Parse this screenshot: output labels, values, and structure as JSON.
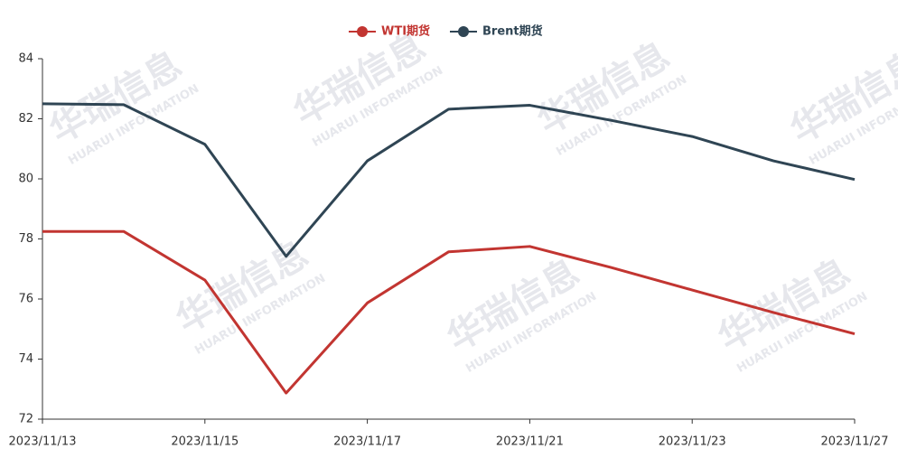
{
  "chart_data": {
    "type": "line",
    "categories": [
      "2023/11/13",
      null,
      "2023/11/15",
      null,
      "2023/11/17",
      null,
      "2023/11/21",
      null,
      "2023/11/23",
      null,
      "2023/11/27"
    ],
    "series": [
      {
        "name": "WTI期货",
        "color": "#c23531",
        "values": [
          78.25,
          78.25,
          76.63,
          72.87,
          75.87,
          77.57,
          77.75,
          77.05,
          76.3,
          75.55,
          74.84
        ]
      },
      {
        "name": "Brent期货",
        "color": "#2f4554",
        "values": [
          82.5,
          82.47,
          81.15,
          77.42,
          80.6,
          82.32,
          82.45,
          81.95,
          81.41,
          80.6,
          79.98
        ]
      }
    ],
    "ylim": [
      72,
      84
    ],
    "yticks": [
      72,
      74,
      76,
      78,
      80,
      82,
      84
    ],
    "legend": "top",
    "watermark": [
      "华瑞信息",
      "HUARUI INFORMATION"
    ]
  }
}
